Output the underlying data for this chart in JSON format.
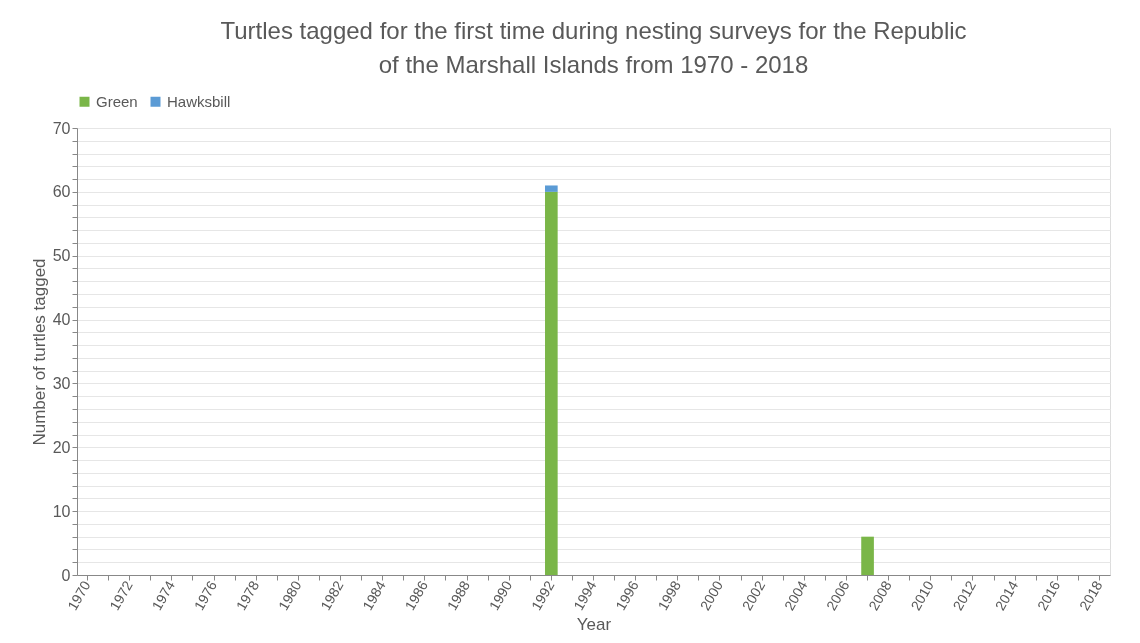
{
  "chart_data": {
    "type": "bar",
    "stacked": true,
    "title": "Turtles tagged for the first time during nesting surveys for the Republic of the Marshall Islands from 1970 - 2018",
    "xlabel": "Year",
    "ylabel": "Number of turtles tagged",
    "categories": [
      "1970",
      null,
      "1972",
      null,
      "1974",
      null,
      "1976",
      null,
      "1978",
      null,
      "1980",
      null,
      "1982",
      null,
      "1984",
      null,
      "1986",
      null,
      "1988",
      null,
      "1990",
      null,
      "1992",
      null,
      "1994",
      null,
      "1996",
      null,
      "1998",
      null,
      "2000",
      null,
      "2002",
      null,
      "2004",
      null,
      "2006",
      null,
      "2008",
      null,
      "2010",
      null,
      "2012",
      null,
      "2014",
      null,
      "2016",
      null,
      "2018"
    ],
    "series": [
      {
        "name": "Green",
        "color": "#7ab648",
        "values": [
          null,
          null,
          null,
          null,
          null,
          null,
          null,
          null,
          null,
          null,
          null,
          null,
          null,
          null,
          null,
          null,
          null,
          null,
          null,
          null,
          null,
          null,
          60,
          null,
          null,
          null,
          null,
          null,
          null,
          null,
          null,
          null,
          null,
          null,
          null,
          null,
          null,
          6,
          null,
          null,
          null,
          null,
          null,
          null,
          null,
          null,
          null,
          null,
          null
        ]
      },
      {
        "name": "Hawksbill",
        "color": "#5b9bd5",
        "values": [
          null,
          null,
          null,
          null,
          null,
          null,
          null,
          null,
          null,
          null,
          null,
          null,
          null,
          null,
          null,
          null,
          null,
          null,
          null,
          null,
          null,
          null,
          1,
          null,
          null,
          null,
          null,
          null,
          null,
          null,
          null,
          null,
          null,
          null,
          null,
          null,
          null,
          null,
          null,
          null,
          null,
          null,
          null,
          null,
          null,
          null,
          null,
          null,
          null
        ]
      }
    ],
    "ylim": [
      0,
      70
    ],
    "yticks": [
      0,
      {
        "value": 2,
        "label": null
      },
      {
        "value": 4,
        "label": null
      },
      {
        "value": 6,
        "label": null
      },
      {
        "value": 8,
        "label": null
      },
      10,
      {
        "value": 12,
        "label": null
      },
      {
        "value": 14,
        "label": null
      },
      {
        "value": 16,
        "label": null
      },
      {
        "value": 18,
        "label": null
      },
      20,
      {
        "value": 22,
        "label": null
      },
      {
        "value": 24,
        "label": null
      },
      {
        "value": 26,
        "label": null
      },
      {
        "value": 28,
        "label": null
      },
      30,
      {
        "value": 32,
        "label": null
      },
      {
        "value": 34,
        "label": null
      },
      {
        "value": 36,
        "label": null
      },
      {
        "value": 38,
        "label": null
      },
      40,
      {
        "value": 42,
        "label": null
      },
      {
        "value": 44,
        "label": null
      },
      {
        "value": 46,
        "label": null
      },
      {
        "value": 48,
        "label": null
      },
      50,
      {
        "value": 52,
        "label": null
      },
      {
        "value": 54,
        "label": null
      },
      {
        "value": 56,
        "label": null
      },
      {
        "value": 58,
        "label": null
      },
      60,
      {
        "value": 62,
        "label": null
      },
      {
        "value": 64,
        "label": null
      },
      {
        "value": 66,
        "label": null
      },
      {
        "value": 68,
        "label": null
      },
      70
    ],
    "grid": "y",
    "legend": "top"
  }
}
